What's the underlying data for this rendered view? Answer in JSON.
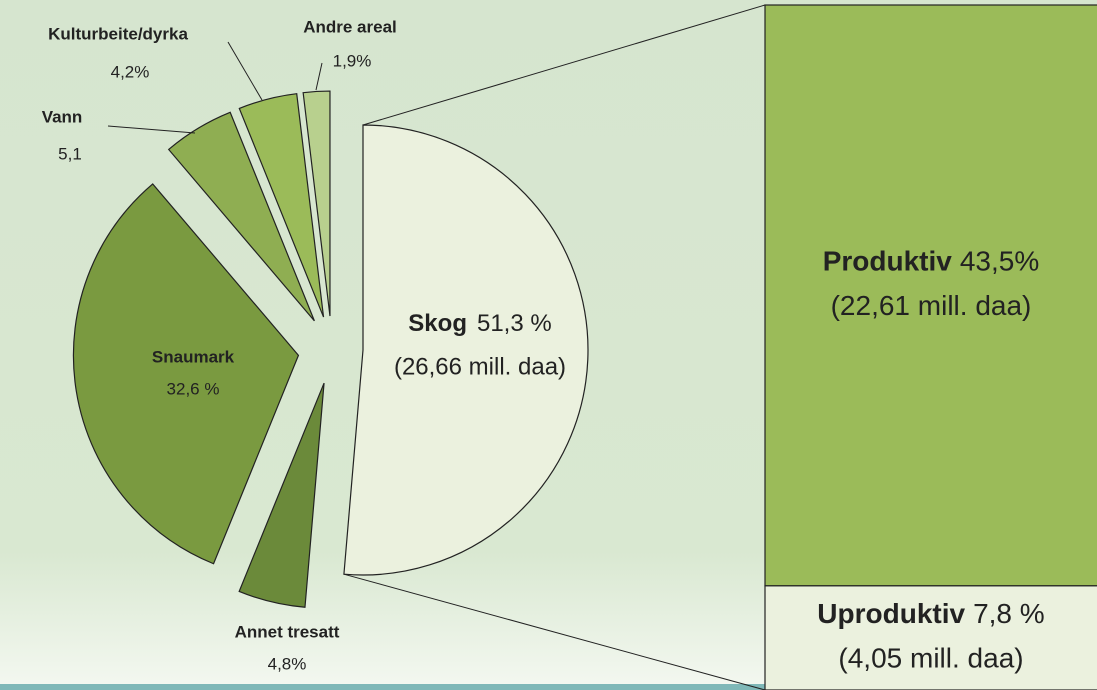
{
  "chart_data": {
    "type": "pie-of-bar",
    "slices": [
      {
        "name": "Skog",
        "value": 51.3,
        "value_label": "51,3 %",
        "sublabel": "(26,66 mill. daa)",
        "color": "#ebf1de"
      },
      {
        "name": "Annet tresatt",
        "value": 4.8,
        "value_label": "4,8%",
        "color": "#6b8a3a"
      },
      {
        "name": "Snaumark",
        "value": 32.6,
        "value_label": "32,6 %",
        "color": "#7a9a40"
      },
      {
        "name": "Vann",
        "value": 5.1,
        "value_label": "5,1",
        "color": "#8fae52"
      },
      {
        "name": "Kulturbeite/dyrka",
        "value": 4.2,
        "value_label": "4,2%",
        "color": "#9bbb59"
      },
      {
        "name": "Andre areal",
        "value": 1.9,
        "value_label": "1,9%",
        "color": "#b8d08e"
      }
    ],
    "bar": [
      {
        "name": "Produktiv",
        "value": 43.5,
        "value_label": "43,5%",
        "sublabel": "(22,61 mill. daa)",
        "color": "#9bbb59"
      },
      {
        "name": "Uproduktiv",
        "value": 7.8,
        "value_label": "7,8 %",
        "sublabel": "(4,05 mill. daa)",
        "color": "#ebf1de"
      }
    ]
  }
}
